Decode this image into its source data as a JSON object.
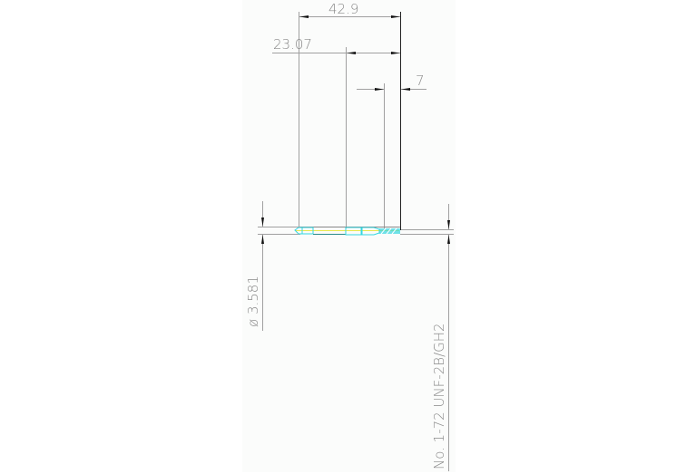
{
  "drawing": {
    "dimensions": {
      "overall_length": "42.9",
      "partial_length": "23.07",
      "thread_length": "7",
      "diameter": "ø 3.581",
      "thread_spec": "No. 1-72 UNF-2B/GH2"
    },
    "colors": {
      "dimension_line": "#9a9a9a",
      "edge_line": "#222222",
      "part_outline": "#33d6e0",
      "centerline": "#e8e84a"
    }
  }
}
